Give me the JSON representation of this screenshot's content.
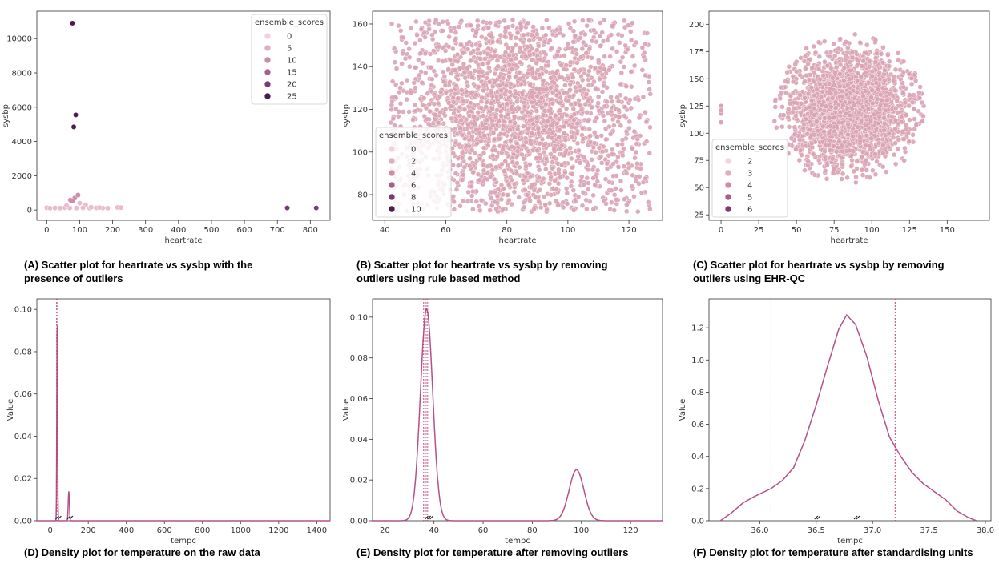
{
  "colors": {
    "point": "#d9a3b4",
    "point_edge": "#ffffff",
    "line": "#b5508a",
    "vline": "#c2417a",
    "axis": "#333333"
  },
  "chart_data": [
    {
      "id": "A",
      "type": "scatter",
      "caption": "(A) Scatter plot for heartrate vs sysbp with the presence of outliers",
      "xlabel": "heartrate",
      "ylabel": "sysbp",
      "xlim": [
        -30,
        860
      ],
      "ylim": [
        -600,
        11600
      ],
      "xticks": [
        0,
        100,
        200,
        300,
        400,
        500,
        600,
        700,
        800
      ],
      "yticks": [
        0,
        2000,
        4000,
        6000,
        8000,
        10000
      ],
      "legend": {
        "title": "ensemble_scores",
        "entries": [
          "0",
          "5",
          "10",
          "15",
          "20",
          "25"
        ],
        "placement": "top-right"
      },
      "points": [
        {
          "x": 78,
          "y": 10900,
          "s": 25
        },
        {
          "x": 88,
          "y": 5550,
          "s": 22
        },
        {
          "x": 82,
          "y": 4850,
          "s": 22
        },
        {
          "x": 730,
          "y": 120,
          "s": 20
        },
        {
          "x": 818,
          "y": 120,
          "s": 20
        },
        {
          "x": 72,
          "y": 580,
          "s": 8
        },
        {
          "x": 85,
          "y": 700,
          "s": 8
        },
        {
          "x": 95,
          "y": 870,
          "s": 8
        },
        {
          "x": 78,
          "y": 520,
          "s": 7
        },
        {
          "x": 100,
          "y": 400,
          "s": 6
        },
        {
          "x": 118,
          "y": 300,
          "s": 6
        },
        {
          "x": 0,
          "y": 130,
          "s": 4
        },
        {
          "x": 10,
          "y": 110,
          "s": 3
        },
        {
          "x": 25,
          "y": 120,
          "s": 3
        },
        {
          "x": 40,
          "y": 110,
          "s": 3
        },
        {
          "x": 55,
          "y": 130,
          "s": 3
        },
        {
          "x": 70,
          "y": 120,
          "s": 3
        },
        {
          "x": 90,
          "y": 115,
          "s": 3
        },
        {
          "x": 110,
          "y": 125,
          "s": 3
        },
        {
          "x": 130,
          "y": 110,
          "s": 3
        },
        {
          "x": 150,
          "y": 120,
          "s": 3
        },
        {
          "x": 170,
          "y": 115,
          "s": 3
        },
        {
          "x": 185,
          "y": 110,
          "s": 3
        },
        {
          "x": 215,
          "y": 150,
          "s": 5
        },
        {
          "x": 225,
          "y": 140,
          "s": 5
        },
        {
          "x": 60,
          "y": 260,
          "s": 5
        },
        {
          "x": 135,
          "y": 160,
          "s": 4
        },
        {
          "x": 160,
          "y": 140,
          "s": 4
        }
      ]
    },
    {
      "id": "B",
      "type": "scatter",
      "caption": "(B) Scatter plot for heartrate vs sysbp by removing outliers using rule based method",
      "xlabel": "heartrate",
      "ylabel": "sysbp",
      "xlim": [
        36,
        131
      ],
      "ylim": [
        68,
        166
      ],
      "xticks": [
        40,
        60,
        80,
        100,
        120
      ],
      "yticks": [
        80,
        100,
        120,
        140,
        160
      ],
      "legend": {
        "title": "ensemble_scores",
        "entries": [
          "0",
          "2",
          "4",
          "6",
          "8",
          "10"
        ],
        "placement": "bottom-left"
      },
      "cloud": {
        "shape": "rect",
        "x_range": [
          42,
          127
        ],
        "y_range": [
          72,
          162
        ],
        "center": [
          82,
          118
        ]
      }
    },
    {
      "id": "C",
      "type": "scatter",
      "caption": "(C) Scatter plot for heartrate vs sysbp by removing outliers using EHR-QC",
      "xlabel": "heartrate",
      "ylabel": "sysbp",
      "xlim": [
        -8,
        178
      ],
      "ylim": [
        20,
        212
      ],
      "xticks": [
        0,
        25,
        50,
        75,
        100,
        125,
        150
      ],
      "yticks": [
        25,
        50,
        75,
        100,
        125,
        150,
        175,
        200
      ],
      "legend": {
        "title": "ensemble_scores",
        "entries": [
          "2",
          "3",
          "4",
          "5",
          "6"
        ],
        "placement": "bottom-left"
      },
      "cloud": {
        "shape": "ellipse",
        "center": [
          85,
          122
        ],
        "radius": [
          45,
          62
        ]
      },
      "extra_points": [
        {
          "x": 0,
          "y": 125
        },
        {
          "x": 0,
          "y": 118
        },
        {
          "x": 0,
          "y": 110
        },
        {
          "x": 0,
          "y": 121
        }
      ]
    },
    {
      "id": "D",
      "type": "line",
      "caption": "(D) Density plot for temperature on the raw data",
      "xlabel": "tempc",
      "ylabel": "Value",
      "xlim": [
        -70,
        1470
      ],
      "ylim": [
        0,
        0.105
      ],
      "xticks": [
        0,
        200,
        400,
        600,
        800,
        1000,
        1200,
        1400
      ],
      "yticks": [
        0.0,
        0.02,
        0.04,
        0.06,
        0.08,
        0.1
      ],
      "ytick_labels": [
        "0.00",
        "0.02",
        "0.04",
        "0.06",
        "0.08",
        "0.10"
      ],
      "peaks": [
        {
          "mu": 37,
          "sigma": 2,
          "h": 0.1
        },
        {
          "mu": 98,
          "sigma": 3,
          "h": 0.014
        }
      ],
      "vlines": [
        34,
        40
      ],
      "rug": [
        37,
        98
      ]
    },
    {
      "id": "E",
      "type": "line",
      "caption": "(E) Density plot for temperature after removing outliers",
      "xlabel": "tempc",
      "ylabel": "Value",
      "xlim": [
        15,
        133
      ],
      "ylim": [
        0,
        0.109
      ],
      "xticks": [
        20,
        40,
        60,
        80,
        100,
        120
      ],
      "yticks": [
        0.0,
        0.02,
        0.04,
        0.06,
        0.08,
        0.1
      ],
      "ytick_labels": [
        "0.00",
        "0.02",
        "0.04",
        "0.06",
        "0.08",
        "0.10"
      ],
      "peaks": [
        {
          "mu": 37,
          "sigma": 2.5,
          "h": 0.104
        },
        {
          "mu": 98,
          "sigma": 3,
          "h": 0.025
        }
      ],
      "vlines": [
        35.8,
        36.5,
        37.2,
        37.9
      ],
      "rug": [
        37,
        38
      ]
    },
    {
      "id": "F",
      "type": "line",
      "caption": "(F) Density plot for temperature after standardising units",
      "xlabel": "tempc",
      "ylabel": "Value",
      "xlim": [
        35.55,
        38.05
      ],
      "ylim": [
        0,
        1.38
      ],
      "xticks": [
        36.0,
        36.5,
        37.0,
        37.5,
        38.0
      ],
      "xtick_labels": [
        "36.0",
        "36.5",
        "37.0",
        "37.5",
        "38.0"
      ],
      "yticks": [
        0.0,
        0.2,
        0.4,
        0.6,
        0.8,
        1.0,
        1.2
      ],
      "ytick_labels": [
        "0.0",
        "0.2",
        "0.4",
        "0.6",
        "0.8",
        "1.0",
        "1.2"
      ],
      "curve": [
        [
          35.65,
          0.0
        ],
        [
          35.75,
          0.05
        ],
        [
          35.85,
          0.11
        ],
        [
          35.95,
          0.15
        ],
        [
          36.1,
          0.2
        ],
        [
          36.2,
          0.25
        ],
        [
          36.3,
          0.33
        ],
        [
          36.4,
          0.5
        ],
        [
          36.5,
          0.72
        ],
        [
          36.6,
          0.96
        ],
        [
          36.7,
          1.19
        ],
        [
          36.77,
          1.28
        ],
        [
          36.85,
          1.22
        ],
        [
          36.95,
          1.02
        ],
        [
          37.05,
          0.75
        ],
        [
          37.15,
          0.52
        ],
        [
          37.25,
          0.4
        ],
        [
          37.35,
          0.3
        ],
        [
          37.45,
          0.23
        ],
        [
          37.55,
          0.18
        ],
        [
          37.65,
          0.13
        ],
        [
          37.75,
          0.06
        ],
        [
          37.85,
          0.02
        ],
        [
          37.92,
          0.0
        ]
      ],
      "vlines": [
        36.1,
        37.2
      ],
      "rug": [
        36.5,
        36.85
      ]
    }
  ]
}
